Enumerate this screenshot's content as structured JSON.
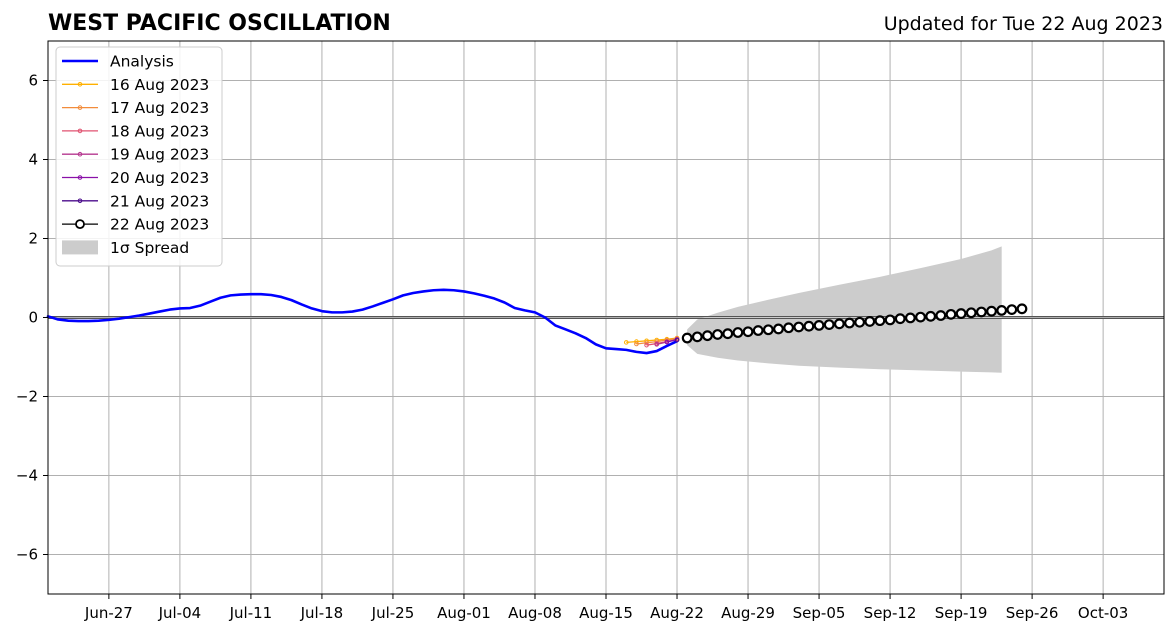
{
  "chart_data": {
    "type": "line",
    "title": "WEST PACIFIC OSCILLATION",
    "updated": "Updated for Tue 22 Aug 2023",
    "xlabel": "",
    "ylabel": "",
    "ylim": [
      -7,
      7
    ],
    "xlim": [
      "2023-06-21",
      "2023-10-09"
    ],
    "yticks": [
      6,
      4,
      2,
      0,
      -2,
      -4,
      -6
    ],
    "ytick_labels": [
      "6",
      "4",
      "2",
      "0",
      "−2",
      "−4",
      "−6"
    ],
    "xticks": [
      "2023-06-27",
      "2023-07-04",
      "2023-07-11",
      "2023-07-18",
      "2023-07-25",
      "2023-08-01",
      "2023-08-08",
      "2023-08-15",
      "2023-08-22",
      "2023-08-29",
      "2023-09-05",
      "2023-09-12",
      "2023-09-19",
      "2023-09-26",
      "2023-10-03"
    ],
    "xtick_labels": [
      "Jun-27",
      "Jul-04",
      "Jul-11",
      "Jul-18",
      "Jul-25",
      "Aug-01",
      "Aug-08",
      "Aug-15",
      "Aug-22",
      "Aug-29",
      "Sep-05",
      "Sep-12",
      "Sep-19",
      "Sep-26",
      "Oct-03"
    ],
    "grid": true,
    "zero_line": true,
    "legend_position": "top-left",
    "analysis": {
      "name": "Analysis",
      "color": "#0000ff",
      "x": [
        "2023-06-21",
        "2023-06-22",
        "2023-06-23",
        "2023-06-24",
        "2023-06-25",
        "2023-06-26",
        "2023-06-27",
        "2023-06-28",
        "2023-06-29",
        "2023-06-30",
        "2023-07-01",
        "2023-07-02",
        "2023-07-03",
        "2023-07-04",
        "2023-07-05",
        "2023-07-06",
        "2023-07-07",
        "2023-07-08",
        "2023-07-09",
        "2023-07-10",
        "2023-07-11",
        "2023-07-12",
        "2023-07-13",
        "2023-07-14",
        "2023-07-15",
        "2023-07-16",
        "2023-07-17",
        "2023-07-18",
        "2023-07-19",
        "2023-07-20",
        "2023-07-21",
        "2023-07-22",
        "2023-07-23",
        "2023-07-24",
        "2023-07-25",
        "2023-07-26",
        "2023-07-27",
        "2023-07-28",
        "2023-07-29",
        "2023-07-30",
        "2023-07-31",
        "2023-08-01",
        "2023-08-02",
        "2023-08-03",
        "2023-08-04",
        "2023-08-05",
        "2023-08-06",
        "2023-08-07",
        "2023-08-08",
        "2023-08-09",
        "2023-08-10",
        "2023-08-11",
        "2023-08-12",
        "2023-08-13",
        "2023-08-14",
        "2023-08-15",
        "2023-08-16",
        "2023-08-17",
        "2023-08-18",
        "2023-08-19",
        "2023-08-20",
        "2023-08-21",
        "2023-08-22"
      ],
      "values": [
        0.03,
        -0.05,
        -0.08,
        -0.09,
        -0.09,
        -0.08,
        -0.06,
        -0.03,
        0.01,
        0.05,
        0.1,
        0.15,
        0.2,
        0.23,
        0.24,
        0.3,
        0.4,
        0.5,
        0.56,
        0.58,
        0.59,
        0.59,
        0.57,
        0.52,
        0.44,
        0.33,
        0.23,
        0.16,
        0.13,
        0.13,
        0.15,
        0.2,
        0.28,
        0.37,
        0.46,
        0.56,
        0.62,
        0.66,
        0.69,
        0.7,
        0.69,
        0.66,
        0.61,
        0.55,
        0.48,
        0.38,
        0.24,
        0.18,
        0.13,
        0.0,
        -0.2,
        -0.3,
        -0.4,
        -0.52,
        -0.68,
        -0.78,
        -0.8,
        -0.82,
        -0.87,
        -0.9,
        -0.85,
        -0.72,
        -0.6
      ]
    },
    "forecasts": [
      {
        "name": "16 Aug 2023",
        "color": "#ffb000",
        "x": [
          "2023-08-17",
          "2023-08-18",
          "2023-08-19",
          "2023-08-20",
          "2023-08-21",
          "2023-08-22"
        ],
        "values": [
          -0.63,
          -0.61,
          -0.59,
          -0.57,
          -0.55,
          -0.52
        ]
      },
      {
        "name": "17 Aug 2023",
        "color": "#f28c3b",
        "x": [
          "2023-08-18",
          "2023-08-19",
          "2023-08-20",
          "2023-08-21",
          "2023-08-22"
        ],
        "values": [
          -0.67,
          -0.64,
          -0.61,
          -0.57,
          -0.53
        ]
      },
      {
        "name": "18 Aug 2023",
        "color": "#e05270",
        "x": [
          "2023-08-19",
          "2023-08-20",
          "2023-08-21",
          "2023-08-22"
        ],
        "values": [
          -0.7,
          -0.66,
          -0.61,
          -0.55
        ]
      },
      {
        "name": "19 Aug 2023",
        "color": "#b5378f",
        "x": [
          "2023-08-20",
          "2023-08-21",
          "2023-08-22"
        ],
        "values": [
          -0.68,
          -0.62,
          -0.56
        ]
      },
      {
        "name": "20 Aug 2023",
        "color": "#8a10a8",
        "x": [
          "2023-08-21",
          "2023-08-22"
        ],
        "values": [
          -0.62,
          -0.56
        ]
      },
      {
        "name": "21 Aug 2023",
        "color": "#4b0c8c",
        "x": [
          "2023-08-22"
        ],
        "values": [
          -0.57
        ]
      }
    ],
    "current_forecast": {
      "name": "22 Aug 2023",
      "color": "#000000",
      "start": "2023-08-23",
      "values": [
        -0.52,
        -0.49,
        -0.46,
        -0.43,
        -0.41,
        -0.38,
        -0.36,
        -0.33,
        -0.31,
        -0.29,
        -0.26,
        -0.24,
        -0.22,
        -0.2,
        -0.18,
        -0.16,
        -0.14,
        -0.12,
        -0.1,
        -0.08,
        -0.06,
        -0.03,
        -0.01,
        0.01,
        0.03,
        0.05,
        0.08,
        0.1,
        0.12,
        0.14,
        0.16,
        0.18,
        0.2,
        0.22
      ]
    },
    "spread": {
      "name": "1σ Spread",
      "color": "#cccccc",
      "x": [
        "2023-08-23",
        "2023-08-24",
        "2023-08-26",
        "2023-08-28",
        "2023-08-31",
        "2023-09-03",
        "2023-09-07",
        "2023-09-11",
        "2023-09-15",
        "2023-09-19",
        "2023-09-22",
        "2023-09-23"
      ],
      "upper": [
        -0.3,
        -0.05,
        0.12,
        0.27,
        0.45,
        0.62,
        0.83,
        1.03,
        1.25,
        1.48,
        1.7,
        1.8
      ],
      "lower": [
        -0.7,
        -0.92,
        -1.02,
        -1.09,
        -1.16,
        -1.22,
        -1.27,
        -1.31,
        -1.34,
        -1.37,
        -1.39,
        -1.4
      ]
    }
  }
}
